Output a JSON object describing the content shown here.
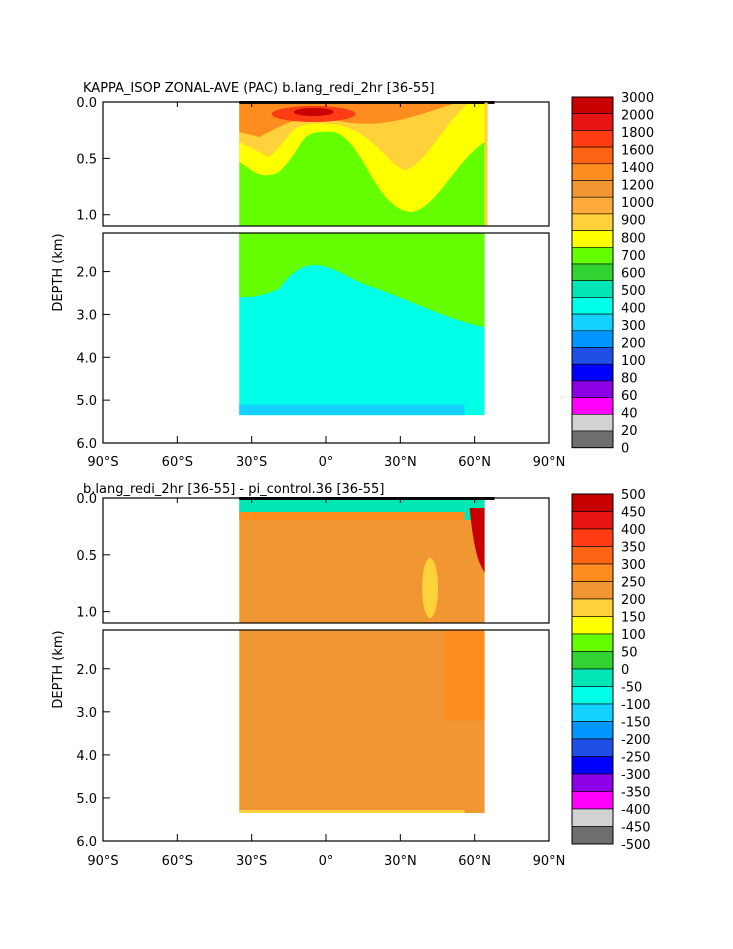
{
  "chart_data": [
    {
      "type": "heatmap",
      "title": "KAPPA_ISOP ZONAL-AVE (PAC) b.lang_redi_2hr [36-55]",
      "ylabel": "DEPTH (km)",
      "x_ticks": [
        "90°S",
        "60°S",
        "30°S",
        "0°",
        "30°N",
        "60°N",
        "90°N"
      ],
      "x_tick_values": [
        -90,
        -60,
        -30,
        0,
        30,
        60,
        90
      ],
      "upper_y_ticks": [
        "0.0",
        "0.5",
        "1.0"
      ],
      "upper_y_tick_values": [
        0.0,
        0.5,
        1.0
      ],
      "lower_y_ticks": [
        "2.0",
        "3.0",
        "4.0",
        "5.0",
        "6.0"
      ],
      "lower_y_tick_values": [
        2.0,
        3.0,
        4.0,
        5.0,
        6.0
      ],
      "xlim": [
        -90,
        90
      ],
      "upper_ylim": [
        0.0,
        1.1
      ],
      "lower_ylim": [
        1.1,
        6.0
      ],
      "colorbar": {
        "labels": [
          "3000",
          "2000",
          "1800",
          "1600",
          "1400",
          "1200",
          "1000",
          "900",
          "800",
          "700",
          "600",
          "500",
          "400",
          "300",
          "200",
          "100",
          "80",
          "60",
          "40",
          "20",
          "0"
        ],
        "colors": [
          "#c80000",
          "#e61414",
          "#ff3c14",
          "#ff6414",
          "#ff8c1e",
          "#f09632",
          "#ffaa3c",
          "#ffd23c",
          "#ffff00",
          "#64ff00",
          "#32d232",
          "#00e6b4",
          "#00ffe6",
          "#14d2ff",
          "#0096ff",
          "#1e50e6",
          "#0000ff",
          "#8c00e6",
          "#ff00ff",
          "#d2d2d2",
          "#6e6e6e"
        ]
      },
      "data_x_range": [
        -35,
        64
      ],
      "data_max_depth": 5.35
    },
    {
      "type": "heatmap",
      "title": "b.lang_redi_2hr [36-55] - pi_control.36 [36-55]",
      "ylabel": "DEPTH (km)",
      "x_ticks": [
        "90°S",
        "60°S",
        "30°S",
        "0°",
        "30°N",
        "60°N",
        "90°N"
      ],
      "x_tick_values": [
        -90,
        -60,
        -30,
        0,
        30,
        60,
        90
      ],
      "upper_y_ticks": [
        "0.0",
        "0.5",
        "1.0"
      ],
      "upper_y_tick_values": [
        0.0,
        0.5,
        1.0
      ],
      "lower_y_ticks": [
        "2.0",
        "3.0",
        "4.0",
        "5.0",
        "6.0"
      ],
      "lower_y_tick_values": [
        2.0,
        3.0,
        4.0,
        5.0,
        6.0
      ],
      "xlim": [
        -90,
        90
      ],
      "upper_ylim": [
        0.0,
        1.1
      ],
      "lower_ylim": [
        1.1,
        6.0
      ],
      "colorbar": {
        "labels": [
          "500",
          "450",
          "400",
          "350",
          "300",
          "250",
          "200",
          "150",
          "100",
          "50",
          "0",
          "-50",
          "-100",
          "-150",
          "-200",
          "-250",
          "-300",
          "-350",
          "-400",
          "-450",
          "-500"
        ],
        "colors": [
          "#c80000",
          "#e61414",
          "#ff3c14",
          "#ff6414",
          "#ff8c1e",
          "#f09632",
          "#ffd23c",
          "#ffff00",
          "#64ff00",
          "#32d232",
          "#00e6b4",
          "#00ffe6",
          "#14d2ff",
          "#0096ff",
          "#1e50e6",
          "#0000ff",
          "#8c00e6",
          "#ff00ff",
          "#d2d2d2",
          "#6e6e6e"
        ]
      },
      "data_x_range": [
        -35,
        64
      ],
      "data_max_depth": 5.35
    }
  ]
}
